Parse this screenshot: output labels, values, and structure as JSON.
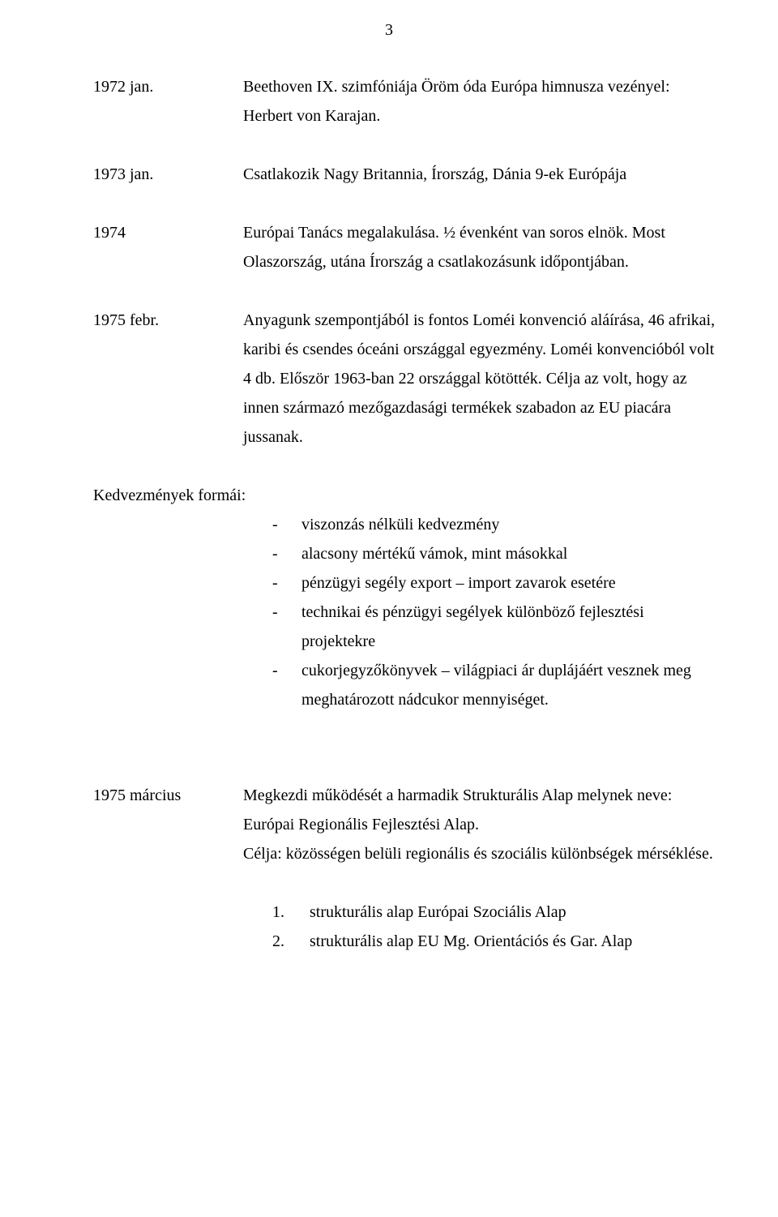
{
  "pageNumber": "3",
  "entries": {
    "e1": {
      "label": "1972 jan.",
      "text": "Beethoven IX. szimfóniája  Öröm óda  Európa himnusza vezényel: Herbert von Karajan."
    },
    "e2": {
      "label": "1973 jan.",
      "text": "Csatlakozik Nagy Britannia, Írország, Dánia 9-ek Európája"
    },
    "e3": {
      "label": "1974",
      "text": "Európai Tanács megalakulása. ½ évenként van soros elnök. Most Olaszország, utána Írország a csatlakozásunk időpontjában."
    },
    "e4": {
      "label": "1975 febr.",
      "text": "Anyagunk szempontjából is fontos Loméi konvenció aláírása, 46 afrikai, karibi és csendes óceáni országgal egyezmény. Loméi konvencióból volt 4 db. Először 1963-ban 22 országgal kötötték. Célja az volt, hogy az innen származó mezőgazdasági termékek szabadon az EU piacára jussanak."
    },
    "formsHeading": "Kedvezmények formái:",
    "bullets": [
      "viszonzás nélküli kedvezmény",
      "alacsony mértékű vámok, mint másokkal",
      "pénzügyi segély export – import zavarok esetére",
      "technikai és pénzügyi segélyek különböző fejlesztési projektekre",
      "cukorjegyzőkönyvek – világpiaci ár duplájáért vesznek meg meghatározott nádcukor mennyiséget."
    ],
    "e5": {
      "label": "1975 március",
      "text": "Megkezdi működését a harmadik Strukturális Alap melynek neve: Európai Regionális Fejlesztési Alap.",
      "text2": "Célja: közösségen belüli regionális és szociális különbségek mérséklése."
    },
    "numbered": [
      "strukturális alap  Európai Szociális Alap",
      "strukturális alap  EU Mg. Orientációs és Gar. Alap"
    ]
  },
  "bulletChar": "-",
  "colors": {
    "background": "#ffffff",
    "text": "#000000"
  },
  "typography": {
    "fontFamily": "Times New Roman",
    "fontSizePt": 15
  }
}
